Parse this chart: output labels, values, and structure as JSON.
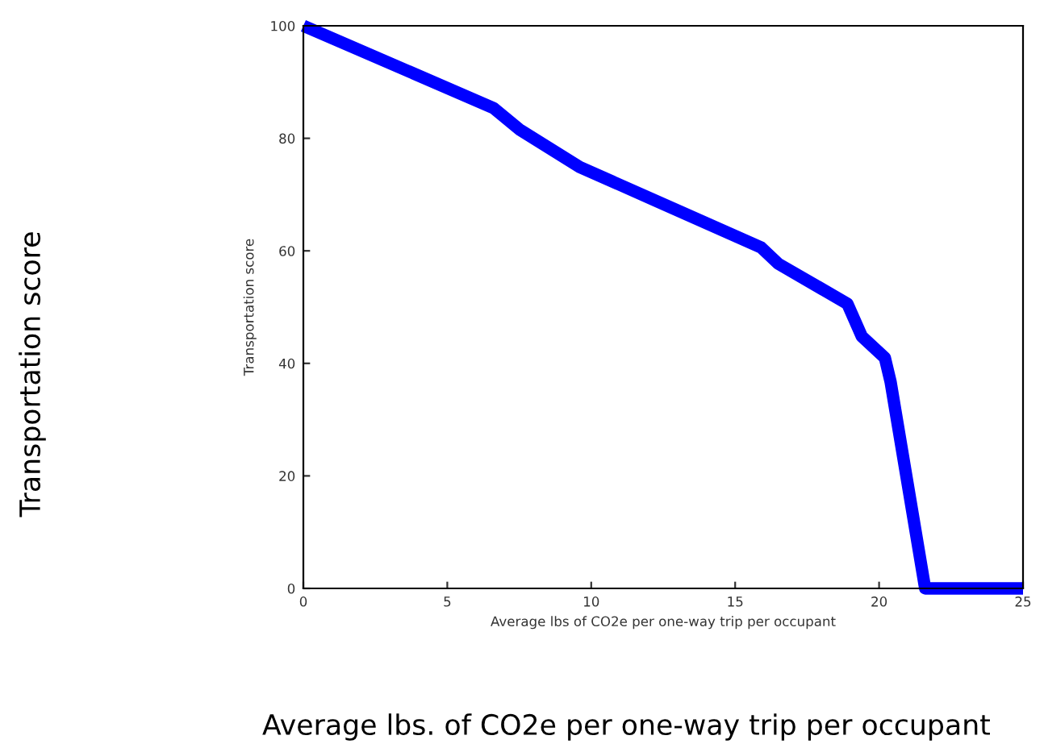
{
  "chart_data": {
    "type": "line",
    "xlabel": "Average lbs of CO2e per one-way trip per occupant",
    "ylabel": "Transportation score",
    "annotations": [
      "Transportation score",
      "Average lbs. of CO2e per one-way trip per occupant"
    ],
    "x": [
      0,
      6.6,
      7.5,
      9.6,
      15.9,
      16.5,
      18.9,
      19.4,
      20.2,
      20.4,
      21.6,
      25
    ],
    "series": [
      {
        "color": "#0000ff",
        "values": [
          100,
          85.4,
          81.6,
          74.9,
          60.6,
          57.7,
          50.6,
          44.8,
          41,
          36.7,
          0,
          0
        ]
      }
    ],
    "xlim": [
      0,
      25
    ],
    "xticks": [
      0,
      5,
      10,
      15,
      20,
      25
    ],
    "ylim": [
      0,
      100
    ],
    "yticks": [
      0,
      20,
      40,
      60,
      80,
      100
    ],
    "grid": false,
    "legend": false,
    "marker": "none",
    "line_style": "solid"
  }
}
